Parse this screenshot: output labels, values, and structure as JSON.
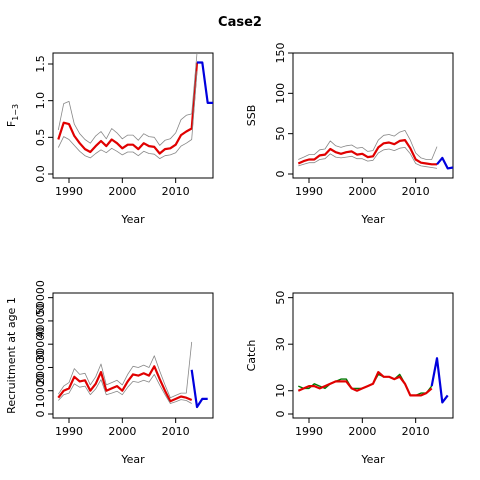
{
  "title": "Case2",
  "chart_data": [
    {
      "type": "line",
      "ylabel": "F",
      "ylabel_subscript": "1−3",
      "xlabel": "Year",
      "xlim": [
        1987,
        2017
      ],
      "ylim": [
        0,
        1.65
      ],
      "xticks": [
        "1990",
        "2000",
        "2010"
      ],
      "yticks": [
        "0.0",
        "0.5",
        "1.0",
        "1.5"
      ],
      "series": [
        {
          "role": "estimate",
          "color": "#e00000",
          "x": [
            1988,
            1989,
            1990,
            1991,
            1992,
            1993,
            1994,
            1995,
            1996,
            1997,
            1998,
            1999,
            2000,
            2001,
            2002,
            2003,
            2004,
            2005,
            2006,
            2007,
            2008,
            2009,
            2010,
            2011,
            2012,
            2013,
            2014
          ],
          "values": [
            0.47,
            0.7,
            0.68,
            0.52,
            0.42,
            0.34,
            0.3,
            0.38,
            0.45,
            0.38,
            0.47,
            0.42,
            0.35,
            0.4,
            0.4,
            0.34,
            0.42,
            0.38,
            0.37,
            0.28,
            0.34,
            0.35,
            0.4,
            0.53,
            0.58,
            0.62,
            1.52
          ]
        },
        {
          "role": "upper",
          "color": "#888888",
          "x": [
            1988,
            1989,
            1990,
            1991,
            1992,
            1993,
            1994,
            1995,
            1996,
            1997,
            1998,
            1999,
            2000,
            2001,
            2002,
            2003,
            2004,
            2005,
            2006,
            2007,
            2008,
            2009,
            2010,
            2011,
            2012,
            2013,
            2014
          ],
          "values": [
            0.6,
            0.96,
            0.99,
            0.68,
            0.55,
            0.47,
            0.42,
            0.52,
            0.58,
            0.48,
            0.62,
            0.56,
            0.48,
            0.53,
            0.53,
            0.46,
            0.55,
            0.51,
            0.5,
            0.39,
            0.46,
            0.48,
            0.56,
            0.74,
            0.8,
            0.82,
            1.65
          ]
        },
        {
          "role": "lower",
          "color": "#888888",
          "x": [
            1988,
            1989,
            1990,
            1991,
            1992,
            1993,
            1994,
            1995,
            1996,
            1997,
            1998,
            1999,
            2000,
            2001,
            2002,
            2003,
            2004,
            2005,
            2006,
            2007,
            2008,
            2009,
            2010,
            2011,
            2012,
            2013,
            2014
          ],
          "values": [
            0.36,
            0.51,
            0.47,
            0.39,
            0.31,
            0.25,
            0.22,
            0.28,
            0.33,
            0.29,
            0.35,
            0.31,
            0.26,
            0.3,
            0.3,
            0.25,
            0.31,
            0.28,
            0.27,
            0.21,
            0.25,
            0.26,
            0.29,
            0.38,
            0.42,
            0.47,
            1.4
          ]
        },
        {
          "role": "projection",
          "color": "#0000dd",
          "x": [
            2014,
            2015,
            2016,
            2017
          ],
          "values": [
            1.52,
            1.52,
            0.97,
            0.97
          ]
        }
      ]
    },
    {
      "type": "line",
      "ylabel": "SSB",
      "xlabel": "Year",
      "xlim": [
        1987,
        2017
      ],
      "ylim": [
        0,
        150
      ],
      "xticks": [
        "1990",
        "2000",
        "2010"
      ],
      "yticks": [
        "0",
        "50",
        "100",
        "150"
      ],
      "series": [
        {
          "role": "estimate",
          "color": "#e00000",
          "x": [
            1988,
            1989,
            1990,
            1991,
            1992,
            1993,
            1994,
            1995,
            1996,
            1997,
            1998,
            1999,
            2000,
            2001,
            2002,
            2003,
            2004,
            2005,
            2006,
            2007,
            2008,
            2009,
            2010,
            2011,
            2012,
            2013,
            2014
          ],
          "values": [
            13,
            16,
            18,
            18,
            23,
            24,
            31,
            27,
            25,
            27,
            28,
            24,
            25,
            21,
            22,
            33,
            38,
            39,
            37,
            41,
            42,
            32,
            18,
            14,
            13,
            12,
            12
          ]
        },
        {
          "role": "upper",
          "color": "#888888",
          "x": [
            1988,
            1989,
            1990,
            1991,
            1992,
            1993,
            1994,
            1995,
            1996,
            1997,
            1998,
            1999,
            2000,
            2001,
            2002,
            2003,
            2004,
            2005,
            2006,
            2007,
            2008,
            2009,
            2010,
            2011,
            2012,
            2013,
            2014
          ],
          "values": [
            18,
            21,
            24,
            24,
            30,
            31,
            41,
            35,
            33,
            35,
            36,
            32,
            33,
            28,
            29,
            42,
            48,
            49,
            47,
            52,
            54,
            42,
            26,
            20,
            18,
            18,
            34
          ]
        },
        {
          "role": "lower",
          "color": "#888888",
          "x": [
            1988,
            1989,
            1990,
            1991,
            1992,
            1993,
            1994,
            1995,
            1996,
            1997,
            1998,
            1999,
            2000,
            2001,
            2002,
            2003,
            2004,
            2005,
            2006,
            2007,
            2008,
            2009,
            2010,
            2011,
            2012,
            2013,
            2014
          ],
          "values": [
            10,
            12,
            14,
            14,
            18,
            19,
            25,
            21,
            20,
            21,
            22,
            19,
            19,
            16,
            17,
            26,
            30,
            31,
            29,
            32,
            33,
            25,
            13,
            10,
            9,
            8,
            7
          ]
        },
        {
          "role": "projection",
          "color": "#0000dd",
          "x": [
            2014,
            2015,
            2016,
            2017
          ],
          "values": [
            12,
            20,
            7,
            8
          ]
        }
      ]
    },
    {
      "type": "line",
      "ylabel": "Recruitment at age 1",
      "xlabel": "Year",
      "xlim": [
        1987,
        2017
      ],
      "ylim": [
        0,
        52000
      ],
      "xticks": [
        "1990",
        "2000",
        "2010"
      ],
      "yticks": [
        "0",
        "10000",
        "20000",
        "30000",
        "40000",
        "50000"
      ],
      "series": [
        {
          "role": "estimate",
          "color": "#e00000",
          "x": [
            1988,
            1989,
            1990,
            1991,
            1992,
            1993,
            1994,
            1995,
            1996,
            1997,
            1998,
            1999,
            2000,
            2001,
            2002,
            2003,
            2004,
            2005,
            2006,
            2007,
            2008,
            2009,
            2010,
            2011,
            2012,
            2013
          ],
          "values": [
            7000,
            10000,
            11000,
            16000,
            14000,
            14500,
            10000,
            13000,
            18000,
            10000,
            11000,
            12000,
            10000,
            14000,
            17000,
            16500,
            17500,
            16500,
            20500,
            15000,
            10000,
            5500,
            6500,
            7500,
            7000,
            6000
          ]
        },
        {
          "role": "upper",
          "color": "#888888",
          "x": [
            1988,
            1989,
            1990,
            1991,
            1992,
            1993,
            1994,
            1995,
            1996,
            1997,
            1998,
            1999,
            2000,
            2001,
            2002,
            2003,
            2004,
            2005,
            2006,
            2007,
            2008,
            2009,
            2010,
            2011,
            2012,
            2013
          ],
          "values": [
            8500,
            12000,
            13500,
            19500,
            17000,
            17500,
            12500,
            16000,
            21500,
            12500,
            13500,
            14500,
            12500,
            17000,
            20500,
            20000,
            21000,
            20000,
            25000,
            18500,
            12500,
            7000,
            8000,
            9000,
            9000,
            31000
          ]
        },
        {
          "role": "lower",
          "color": "#888888",
          "x": [
            1988,
            1989,
            1990,
            1991,
            1992,
            1993,
            1994,
            1995,
            1996,
            1997,
            1998,
            1999,
            2000,
            2001,
            2002,
            2003,
            2004,
            2005,
            2006,
            2007,
            2008,
            2009,
            2010,
            2011,
            2012,
            2013
          ],
          "values": [
            5800,
            8300,
            9000,
            13000,
            11500,
            12000,
            8300,
            10800,
            14800,
            8300,
            9000,
            9800,
            8300,
            11500,
            14000,
            13600,
            14500,
            13700,
            17000,
            12400,
            8300,
            4500,
            5300,
            6200,
            5800,
            4500
          ]
        },
        {
          "role": "projection",
          "color": "#0000dd",
          "x": [
            2013,
            2014,
            2015,
            2016
          ],
          "values": [
            19000,
            3000,
            6500,
            6500
          ]
        }
      ]
    },
    {
      "type": "line",
      "ylabel": "Catch",
      "xlabel": "Year",
      "xlim": [
        1987,
        2017
      ],
      "ylim": [
        0,
        52
      ],
      "xticks": [
        "1990",
        "2000",
        "2010"
      ],
      "yticks": [
        "0",
        "10",
        "30",
        "50"
      ],
      "series": [
        {
          "role": "observed",
          "color": "#007700",
          "x": [
            1988,
            1989,
            1990,
            1991,
            1992,
            1993,
            1994,
            1995,
            1996,
            1997,
            1998,
            1999,
            2000,
            2001,
            2002,
            2003,
            2004,
            2005,
            2006,
            2007,
            2008,
            2009,
            2010,
            2011,
            2012,
            2013
          ],
          "values": [
            12,
            11,
            11,
            13,
            12,
            11,
            13,
            14,
            15,
            15,
            11,
            11,
            11,
            12,
            13,
            17,
            16,
            16,
            15,
            17,
            13,
            8,
            8,
            9,
            9,
            12
          ]
        },
        {
          "role": "estimate",
          "color": "#e00000",
          "x": [
            1988,
            1989,
            1990,
            1991,
            1992,
            1993,
            1994,
            1995,
            1996,
            1997,
            1998,
            1999,
            2000,
            2001,
            2002,
            2003,
            2004,
            2005,
            2006,
            2007,
            2008,
            2009,
            2010,
            2011,
            2012,
            2013
          ],
          "values": [
            10,
            11,
            12,
            12,
            11,
            12,
            13,
            14,
            14,
            14,
            11,
            10,
            11,
            12,
            13,
            18,
            16,
            16,
            15,
            16,
            13,
            8,
            8,
            8,
            9,
            11
          ]
        },
        {
          "role": "projection",
          "color": "#0000dd",
          "x": [
            2013,
            2014,
            2015,
            2016
          ],
          "values": [
            12,
            24,
            5,
            8
          ]
        }
      ]
    }
  ]
}
